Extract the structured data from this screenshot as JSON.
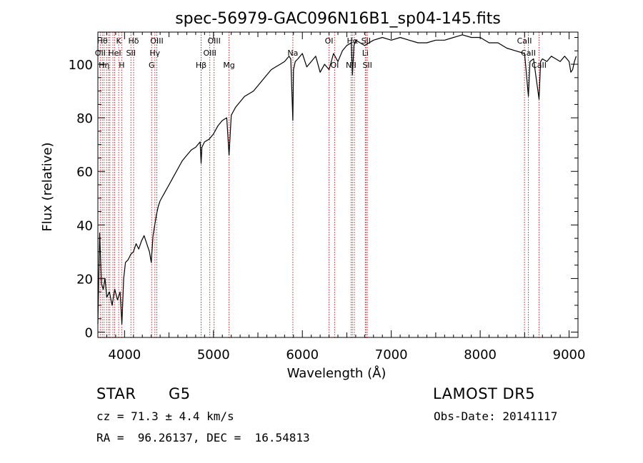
{
  "chart_data": {
    "type": "line",
    "title": "spec-56979-GAC096N16B1_sp04-145.fits",
    "xlabel": "Wavelength (Å)",
    "ylabel": "Flux (relative)",
    "xlim": [
      3700,
      9100
    ],
    "ylim": [
      -2,
      112
    ],
    "xticks": [
      4000,
      5000,
      6000,
      7000,
      8000,
      9000
    ],
    "yticks": [
      0,
      20,
      40,
      60,
      80,
      100
    ],
    "grid": false,
    "series": [
      {
        "x": [
          3700,
          3720,
          3740,
          3760,
          3780,
          3800,
          3830,
          3860,
          3890,
          3920,
          3950,
          3970,
          3990,
          4010,
          4040,
          4070,
          4100,
          4130,
          4160,
          4190,
          4220,
          4250,
          4280,
          4300,
          4320,
          4340,
          4360,
          4380,
          4400,
          4450,
          4500,
          4550,
          4600,
          4650,
          4700,
          4750,
          4800,
          4850,
          4861,
          4870,
          4900,
          4950,
          5000,
          5050,
          5100,
          5150,
          5175,
          5200,
          5250,
          5300,
          5350,
          5400,
          5450,
          5500,
          5550,
          5600,
          5650,
          5700,
          5750,
          5800,
          5850,
          5870,
          5893,
          5900,
          5920,
          5950,
          6000,
          6050,
          6100,
          6150,
          6200,
          6250,
          6300,
          6350,
          6400,
          6450,
          6500,
          6550,
          6563,
          6580,
          6600,
          6650,
          6700,
          6750,
          6800,
          6900,
          7000,
          7100,
          7200,
          7300,
          7400,
          7500,
          7600,
          7700,
          7800,
          7900,
          8000,
          8100,
          8200,
          8300,
          8400,
          8500,
          8542,
          8560,
          8600,
          8662,
          8680,
          8700,
          8750,
          8800,
          8850,
          8900,
          8950,
          9000,
          9020,
          9040,
          9060,
          9080
        ],
        "values": [
          3,
          37,
          18,
          16,
          20,
          13,
          15,
          10,
          16,
          12,
          15,
          3,
          20,
          26,
          27,
          29,
          30,
          33,
          31,
          34,
          36,
          33,
          30,
          26,
          36,
          40,
          44,
          47,
          49,
          52,
          55,
          58,
          61,
          64,
          66,
          68,
          69,
          71,
          63,
          69,
          71,
          72,
          74,
          77,
          79,
          80,
          66,
          81,
          84,
          86,
          88,
          89,
          90,
          92,
          94,
          96,
          98,
          99,
          100,
          101,
          103,
          102,
          79,
          98,
          101,
          102,
          104,
          99,
          101,
          103,
          97,
          100,
          98,
          104,
          101,
          105,
          107,
          108,
          96,
          107,
          109,
          108,
          107,
          108,
          109,
          110,
          109,
          110,
          109,
          108,
          108,
          109,
          109,
          110,
          111,
          110,
          110,
          108,
          108,
          106,
          105,
          104,
          88,
          101,
          102,
          87,
          101,
          102,
          101,
          103,
          102,
          101,
          103,
          101,
          97,
          98,
          101,
          103
        ]
      }
    ],
    "lines": [
      {
        "x": 3727,
        "label": "OII",
        "row": 2
      },
      {
        "x": 3750,
        "label": "Hθ",
        "row": 1
      },
      {
        "x": 3770,
        "label": "Hη",
        "row": 3
      },
      {
        "x": 3798,
        "label": "",
        "row": 0
      },
      {
        "x": 3820,
        "label": "",
        "row": 0
      },
      {
        "x": 3835,
        "label": "",
        "row": 0
      },
      {
        "x": 3869,
        "label": "",
        "row": 0
      },
      {
        "x": 3889,
        "label": "HeI",
        "row": 2
      },
      {
        "x": 3934,
        "label": "K",
        "row": 1
      },
      {
        "x": 3968,
        "label": "H",
        "row": 3
      },
      {
        "x": 4072,
        "label": "SII",
        "row": 2
      },
      {
        "x": 4102,
        "label": "Hδ",
        "row": 1
      },
      {
        "x": 4305,
        "label": "G",
        "row": 3
      },
      {
        "x": 4341,
        "label": "Hγ",
        "row": 2
      },
      {
        "x": 4363,
        "label": "OIII",
        "row": 1
      },
      {
        "x": 4861,
        "label": "Hβ",
        "row": 3
      },
      {
        "x": 4959,
        "label": "OIII",
        "row": 2
      },
      {
        "x": 5007,
        "label": "OIII",
        "row": 1
      },
      {
        "x": 5175,
        "label": "Mg",
        "row": 3
      },
      {
        "x": 5893,
        "label": "Na",
        "row": 2
      },
      {
        "x": 6300,
        "label": "OI",
        "row": 1
      },
      {
        "x": 6363,
        "label": "OI",
        "row": 3
      },
      {
        "x": 6548,
        "label": "NII",
        "row": 3
      },
      {
        "x": 6563,
        "label": "Hα",
        "row": 1
      },
      {
        "x": 6584,
        "label": "",
        "row": 0
      },
      {
        "x": 6708,
        "label": "Li",
        "row": 2
      },
      {
        "x": 6716,
        "label": "SII",
        "row": 1
      },
      {
        "x": 6731,
        "label": "SII",
        "row": 3
      },
      {
        "x": 8498,
        "label": "CaII",
        "row": 1
      },
      {
        "x": 8542,
        "label": "CaII",
        "row": 2
      },
      {
        "x": 8662,
        "label": "CaII",
        "row": 3
      }
    ]
  },
  "info": {
    "object_type": "STAR",
    "subclass": "G5",
    "survey": "LAMOST DR5",
    "cz": "cz = 71.3 ± 4.4 km/s",
    "obs_date": "Obs-Date: 20141117",
    "coords": "RA =  96.26137, DEC =  16.54813"
  }
}
